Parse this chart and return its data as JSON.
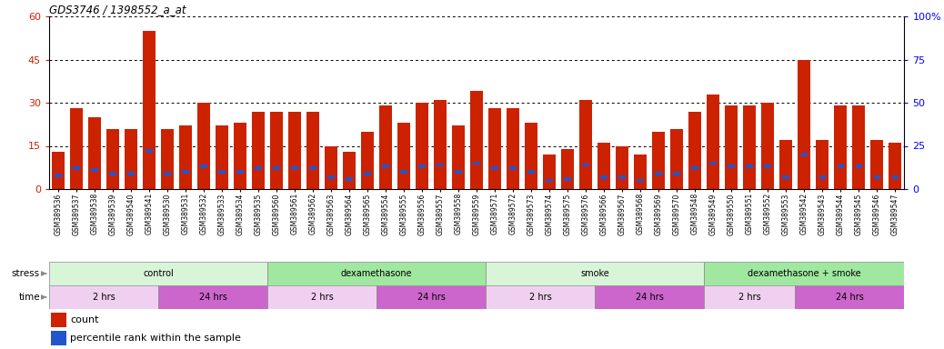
{
  "title": "GDS3746 / 1398552_a_at",
  "samples": [
    "GSM389536",
    "GSM389537",
    "GSM389538",
    "GSM389539",
    "GSM389540",
    "GSM389541",
    "GSM389530",
    "GSM389531",
    "GSM389532",
    "GSM389533",
    "GSM389534",
    "GSM389535",
    "GSM389560",
    "GSM389561",
    "GSM389562",
    "GSM389563",
    "GSM389564",
    "GSM389565",
    "GSM389554",
    "GSM389555",
    "GSM389556",
    "GSM389557",
    "GSM389558",
    "GSM389559",
    "GSM389571",
    "GSM389572",
    "GSM389573",
    "GSM389574",
    "GSM389575",
    "GSM389576",
    "GSM389566",
    "GSM389567",
    "GSM389568",
    "GSM389569",
    "GSM389570",
    "GSM389548",
    "GSM389549",
    "GSM389550",
    "GSM389551",
    "GSM389552",
    "GSM389553",
    "GSM389542",
    "GSM389543",
    "GSM389544",
    "GSM389545",
    "GSM389546",
    "GSM389547"
  ],
  "counts": [
    13,
    28,
    25,
    21,
    21,
    55,
    21,
    22,
    30,
    22,
    23,
    27,
    27,
    27,
    27,
    15,
    13,
    20,
    29,
    23,
    30,
    31,
    22,
    34,
    28,
    28,
    23,
    12,
    14,
    31,
    16,
    15,
    12,
    20,
    21,
    27,
    33,
    29,
    29,
    30,
    17,
    45,
    17,
    29,
    29,
    17,
    16
  ],
  "percentiles": [
    8,
    12,
    11,
    9,
    9,
    22,
    9,
    10,
    13,
    10,
    10,
    12,
    12,
    12,
    12,
    7,
    6,
    9,
    13,
    10,
    13,
    14,
    10,
    15,
    12,
    12,
    10,
    5,
    6,
    14,
    7,
    7,
    5,
    9,
    9,
    12,
    15,
    13,
    13,
    13,
    7,
    20,
    7,
    13,
    13,
    7,
    7
  ],
  "ylim_left": [
    0,
    60
  ],
  "ylim_right": [
    0,
    100
  ],
  "yticks_left": [
    0,
    15,
    30,
    45,
    60
  ],
  "yticks_right": [
    0,
    25,
    50,
    75,
    100
  ],
  "bar_color": "#cc2200",
  "percentile_color": "#2255cc",
  "bg_color": "#ffffff",
  "stress_groups": [
    {
      "label": "control",
      "start": 0,
      "end": 12,
      "color": "#d8f5d8"
    },
    {
      "label": "dexamethasone",
      "start": 12,
      "end": 24,
      "color": "#a0e8a0"
    },
    {
      "label": "smoke",
      "start": 24,
      "end": 36,
      "color": "#d8f5d8"
    },
    {
      "label": "dexamethasone + smoke",
      "start": 36,
      "end": 47,
      "color": "#a0e8a0"
    }
  ],
  "time_groups": [
    {
      "label": "2 hrs",
      "start": 0,
      "end": 6,
      "color": "#f0d0f0"
    },
    {
      "label": "24 hrs",
      "start": 6,
      "end": 12,
      "color": "#cc66cc"
    },
    {
      "label": "2 hrs",
      "start": 12,
      "end": 18,
      "color": "#f0d0f0"
    },
    {
      "label": "24 hrs",
      "start": 18,
      "end": 24,
      "color": "#cc66cc"
    },
    {
      "label": "2 hrs",
      "start": 24,
      "end": 30,
      "color": "#f0d0f0"
    },
    {
      "label": "24 hrs",
      "start": 30,
      "end": 36,
      "color": "#cc66cc"
    },
    {
      "label": "2 hrs",
      "start": 36,
      "end": 41,
      "color": "#f0d0f0"
    },
    {
      "label": "24 hrs",
      "start": 41,
      "end": 47,
      "color": "#cc66cc"
    }
  ]
}
